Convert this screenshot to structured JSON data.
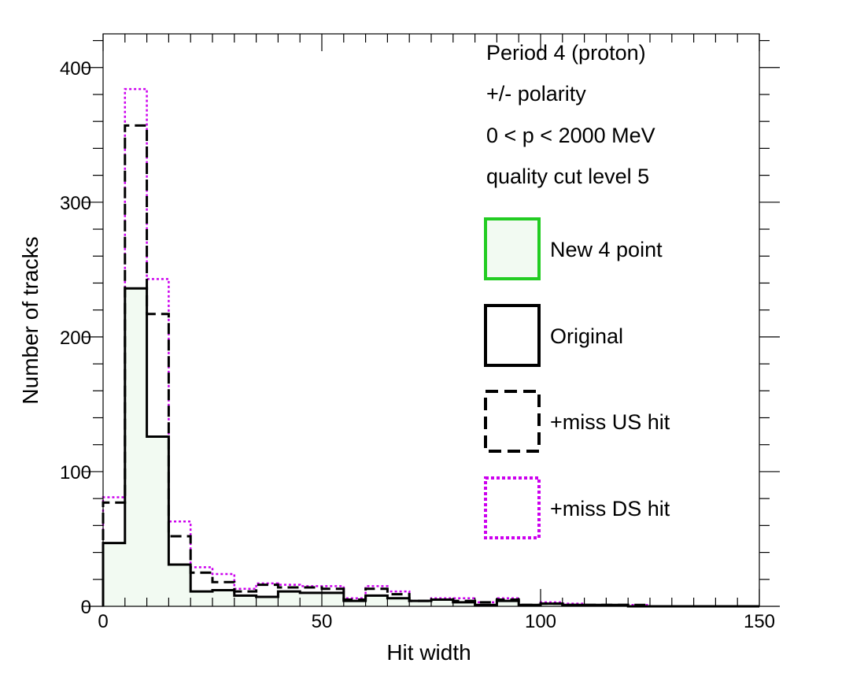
{
  "chart_data": {
    "type": "histogram",
    "xlabel": "Hit width",
    "ylabel": "Number of tracks",
    "xlim": [
      0,
      150
    ],
    "ylim": [
      0,
      425
    ],
    "bin_width": 5,
    "x_ticks": [
      0,
      50,
      100,
      150
    ],
    "y_ticks": [
      0,
      100,
      200,
      300,
      400
    ],
    "grid": false,
    "annotations": [
      "Period 4 (proton)",
      "+/- polarity",
      "0 < p < 2000 MeV",
      "quality cut level 5"
    ],
    "legend_position": "top-right",
    "series": [
      {
        "name": "New 4 point",
        "style": "filled",
        "line_color": "#22cc22",
        "fill_color": "#f2faf2",
        "values": [
          47,
          236,
          126,
          31,
          11,
          12,
          8,
          7,
          11,
          10,
          10,
          4,
          8,
          6,
          4,
          5,
          3,
          1,
          4,
          1,
          2,
          1,
          1,
          1,
          0,
          0,
          0,
          0,
          0,
          0
        ]
      },
      {
        "name": "Original",
        "style": "solid",
        "line_color": "#000000",
        "values": [
          47,
          236,
          126,
          31,
          11,
          12,
          8,
          7,
          11,
          10,
          10,
          4,
          8,
          6,
          4,
          5,
          3,
          1,
          4,
          1,
          2,
          1,
          1,
          1,
          0,
          0,
          0,
          0,
          0,
          0
        ]
      },
      {
        "name": "+miss US hit",
        "style": "dashed",
        "line_color": "#000000",
        "values": [
          77,
          357,
          217,
          52,
          25,
          18,
          11,
          16,
          14,
          14,
          13,
          5,
          13,
          9,
          4,
          5,
          4,
          3,
          5,
          1,
          2,
          1,
          1,
          1,
          1,
          0,
          0,
          0,
          0,
          0
        ]
      },
      {
        "name": "+miss DS hit",
        "style": "dotted",
        "line_color": "#cc00ee",
        "values": [
          81,
          384,
          243,
          63,
          29,
          24,
          13,
          17,
          16,
          15,
          15,
          6,
          15,
          11,
          4,
          6,
          6,
          3,
          6,
          1,
          3,
          2,
          1,
          1,
          1,
          0,
          0,
          0,
          0,
          0
        ]
      }
    ]
  }
}
